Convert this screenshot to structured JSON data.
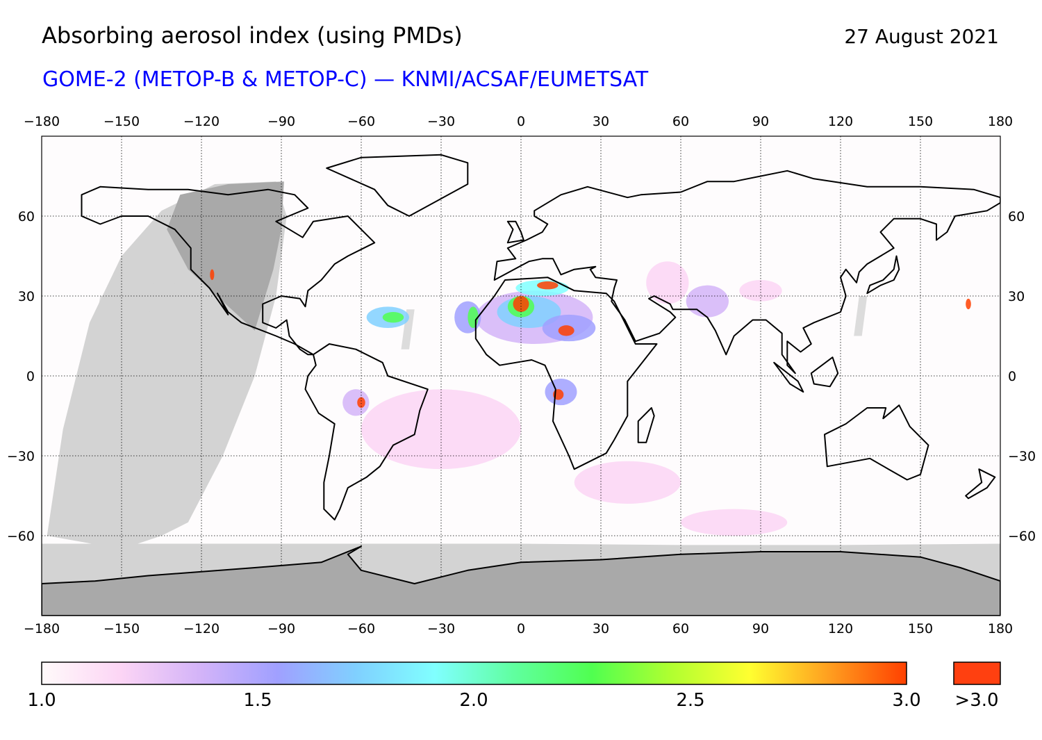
{
  "header": {
    "title": "Absorbing aerosol index (using PMDs)",
    "date": "27 August 2021",
    "subtitle": "GOME-2 (METOP-B & METOP-C) — KNMI/ACSAF/EUMETSAT"
  },
  "map": {
    "lon_ticks": [
      "−180",
      "−150",
      "−120",
      "−90",
      "−60",
      "−30",
      "0",
      "30",
      "60",
      "90",
      "120",
      "150",
      "180"
    ],
    "lat_ticks": [
      "60",
      "30",
      "0",
      "−30",
      "−60"
    ],
    "colors": {
      "no_data_light": "#d3d3d3",
      "no_data_dark": "#a9a9a9",
      "coast": "#000000"
    }
  },
  "colorbar": {
    "labels": [
      "1.0",
      "1.5",
      "2.0",
      "2.5",
      "3.0"
    ],
    "over_label": ">3.0",
    "stops": [
      "#fffafa",
      "#fcd5f5",
      "#d4b4f8",
      "#a0a0ff",
      "#80d0ff",
      "#80ffff",
      "#60ffa0",
      "#50ff50",
      "#b0ff30",
      "#ffff30",
      "#ffa020",
      "#ff4000"
    ],
    "over_color": "#ff4010"
  }
}
